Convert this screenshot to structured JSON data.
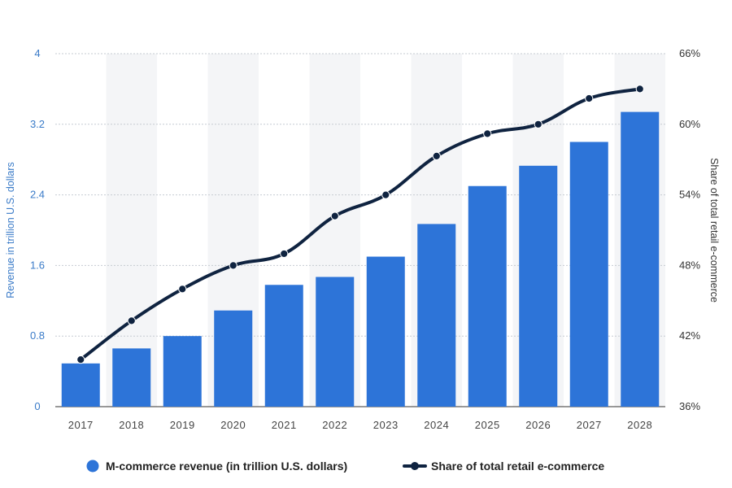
{
  "chart_data": {
    "type": "bar",
    "categories": [
      "2017",
      "2018",
      "2019",
      "2020",
      "2021",
      "2022",
      "2023",
      "2024",
      "2025",
      "2026",
      "2027",
      "2028"
    ],
    "series": [
      {
        "name": "M-commerce revenue (in trillion U.S. dollars)",
        "type": "bar",
        "axis": "left",
        "color": "#2d74d8",
        "values": [
          0.49,
          0.66,
          0.8,
          1.09,
          1.38,
          1.47,
          1.7,
          2.07,
          2.5,
          2.73,
          3.0,
          3.34
        ]
      },
      {
        "name": "Share of total retail e-commerce",
        "type": "line",
        "axis": "right",
        "color": "#0f2340",
        "values": [
          40.0,
          43.3,
          46.0,
          48.0,
          49.0,
          52.2,
          54.0,
          57.3,
          59.2,
          60.0,
          62.2,
          63.0
        ]
      }
    ],
    "y_left": {
      "label": "Revenue in trillion U.S. dollars",
      "range": [
        0,
        4
      ],
      "ticks": [
        "0",
        "0.8",
        "1.6",
        "2.4",
        "3.2",
        "4"
      ]
    },
    "y_right": {
      "label": "Share of total retail e-commerce",
      "range": [
        36,
        66
      ],
      "ticks": [
        "36%",
        "42%",
        "48%",
        "54%",
        "60%",
        "66%"
      ]
    },
    "grid": true,
    "legend": "bottom"
  }
}
